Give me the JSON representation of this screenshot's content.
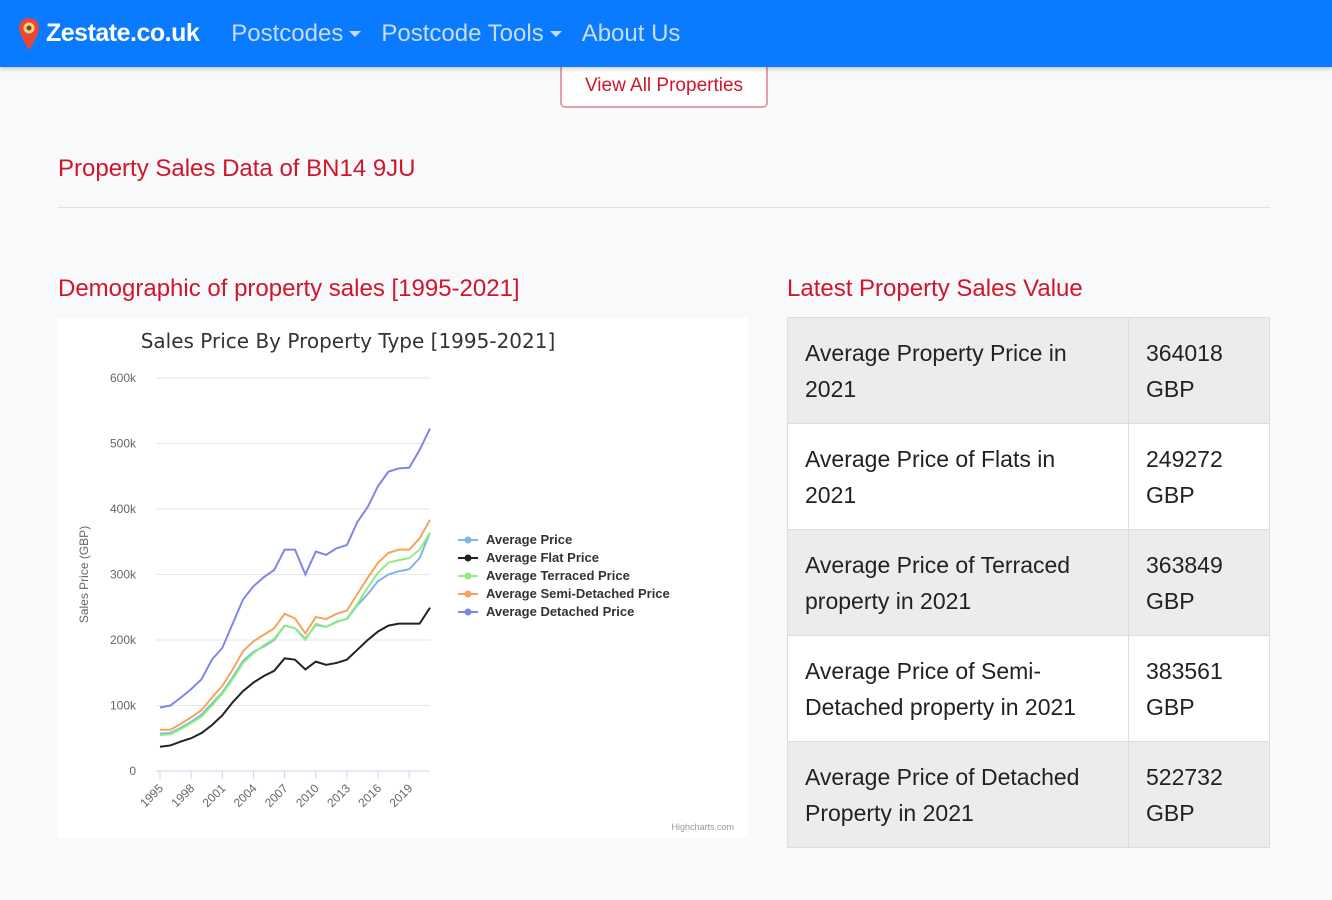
{
  "navbar": {
    "brand": "Zestate.co.uk",
    "items": [
      {
        "label": "Postcodes",
        "dropdown": true
      },
      {
        "label": "Postcode Tools",
        "dropdown": true
      },
      {
        "label": "About Us",
        "dropdown": false
      }
    ],
    "color": "#0a7bff"
  },
  "view_all_button": "View All Properties",
  "page_title": "Property Sales Data of BN14 9JU",
  "demographic_heading": "Demographic of property sales [1995-2021]",
  "latest_heading": "Latest Property Sales Value",
  "latest_table": [
    {
      "label": "Average Property Price in 2021",
      "value": "364018 GBP"
    },
    {
      "label": "Average Price of Flats in 2021",
      "value": "249272 GBP"
    },
    {
      "label": "Average Price of Terraced property in 2021",
      "value": "363849 GBP"
    },
    {
      "label": "Average Price of Semi-Detached property in 2021",
      "value": "383561 GBP"
    },
    {
      "label": "Average Price of Detached Property in 2021",
      "value": "522732 GBP"
    }
  ],
  "chart_data": {
    "type": "line",
    "title": "Sales Price By Property Type [1995-2021]",
    "xlabel": "",
    "ylabel": "Sales Price (GBP)",
    "credit": "Highcharts.com",
    "x": [
      1995,
      1996,
      1997,
      1998,
      1999,
      2000,
      2001,
      2002,
      2003,
      2004,
      2005,
      2006,
      2007,
      2008,
      2009,
      2010,
      2011,
      2012,
      2013,
      2014,
      2015,
      2016,
      2017,
      2018,
      2019,
      2020,
      2021
    ],
    "xticks": [
      "1995",
      "1998",
      "2001",
      "2004",
      "2007",
      "2010",
      "2013",
      "2016",
      "2019"
    ],
    "yticks": [
      "0",
      "100k",
      "200k",
      "300k",
      "400k",
      "500k",
      "600k"
    ],
    "ylim": [
      0,
      600000
    ],
    "grid": true,
    "legend": "right",
    "series": [
      {
        "name": "Average Price",
        "color": "#7cb5ec",
        "values": [
          57000,
          58000,
          66000,
          75000,
          86000,
          103000,
          120000,
          143000,
          168000,
          182000,
          190000,
          200000,
          222000,
          218000,
          202000,
          223000,
          220000,
          228000,
          232000,
          253000,
          270000,
          290000,
          300000,
          305000,
          308000,
          325000,
          364018
        ]
      },
      {
        "name": "Average Flat Price",
        "color": "#222222",
        "values": [
          37000,
          39000,
          45000,
          50000,
          58000,
          70000,
          85000,
          105000,
          122000,
          135000,
          145000,
          153000,
          172000,
          170000,
          155000,
          167000,
          162000,
          165000,
          170000,
          185000,
          200000,
          213000,
          222000,
          225000,
          225000,
          225000,
          249272
        ]
      },
      {
        "name": "Average Terraced Price",
        "color": "#90ed7d",
        "values": [
          55000,
          56000,
          64000,
          73000,
          83000,
          100000,
          118000,
          140000,
          165000,
          180000,
          192000,
          202000,
          222000,
          218000,
          200000,
          225000,
          220000,
          227000,
          233000,
          255000,
          280000,
          303000,
          318000,
          322000,
          325000,
          338000,
          363849
        ]
      },
      {
        "name": "Average Semi-Detached Price",
        "color": "#f7a35c",
        "values": [
          63000,
          63000,
          72000,
          82000,
          93000,
          112000,
          130000,
          155000,
          183000,
          198000,
          208000,
          218000,
          240000,
          233000,
          210000,
          235000,
          232000,
          240000,
          245000,
          270000,
          295000,
          318000,
          333000,
          338000,
          338000,
          355000,
          383561
        ]
      },
      {
        "name": "Average Detached Price",
        "color": "#8085e9",
        "values": [
          97000,
          100000,
          112000,
          125000,
          140000,
          170000,
          188000,
          225000,
          262000,
          282000,
          296000,
          307000,
          338000,
          338000,
          300000,
          335000,
          330000,
          340000,
          345000,
          380000,
          403000,
          435000,
          457000,
          462000,
          463000,
          490000,
          522732
        ]
      }
    ]
  }
}
